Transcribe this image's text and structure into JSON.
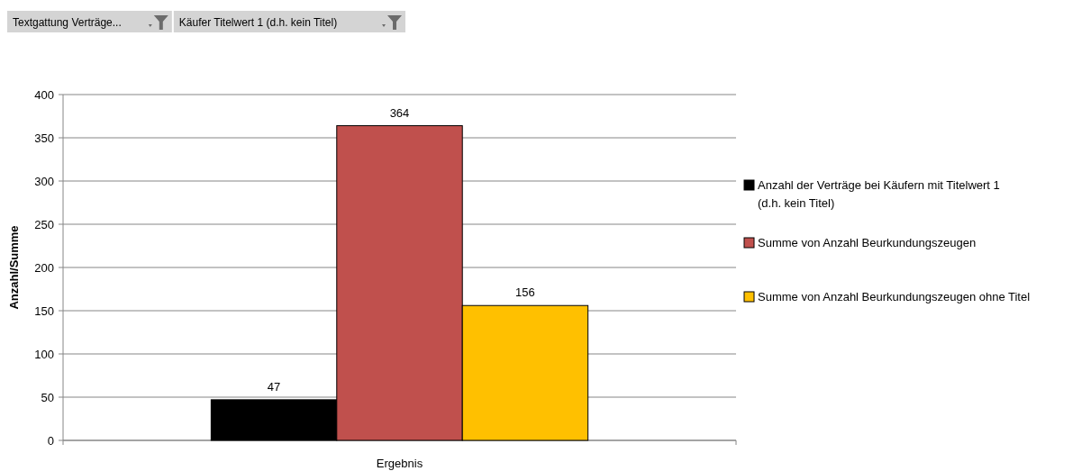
{
  "chart_data": {
    "type": "bar",
    "categories": [
      "Ergebnis"
    ],
    "ylabel": "Anzahl/Summe",
    "series": [
      {
        "name": "Anzahl der Verträge bei Käufern mit Titelwert 1 (d.h. kein Titel)",
        "color": "#000000",
        "values": [
          47
        ]
      },
      {
        "name": "Summe von Anzahl Beurkundungszeugen",
        "color": "#c0504d",
        "values": [
          364
        ]
      },
      {
        "name": "Summe von Anzahl Beurkundungszeugen ohne Titel",
        "color": "#ffc000",
        "values": [
          156
        ]
      }
    ],
    "ylim": [
      0,
      400
    ],
    "yticks": [
      0,
      50,
      100,
      150,
      200,
      250,
      300,
      350,
      400
    ],
    "grid": "y",
    "legend": "right",
    "data_labels": true,
    "annotations": [
      "Textgattung  Verträge...",
      "Käufer Titelwert 1 (d.h. kein Titel)"
    ]
  }
}
